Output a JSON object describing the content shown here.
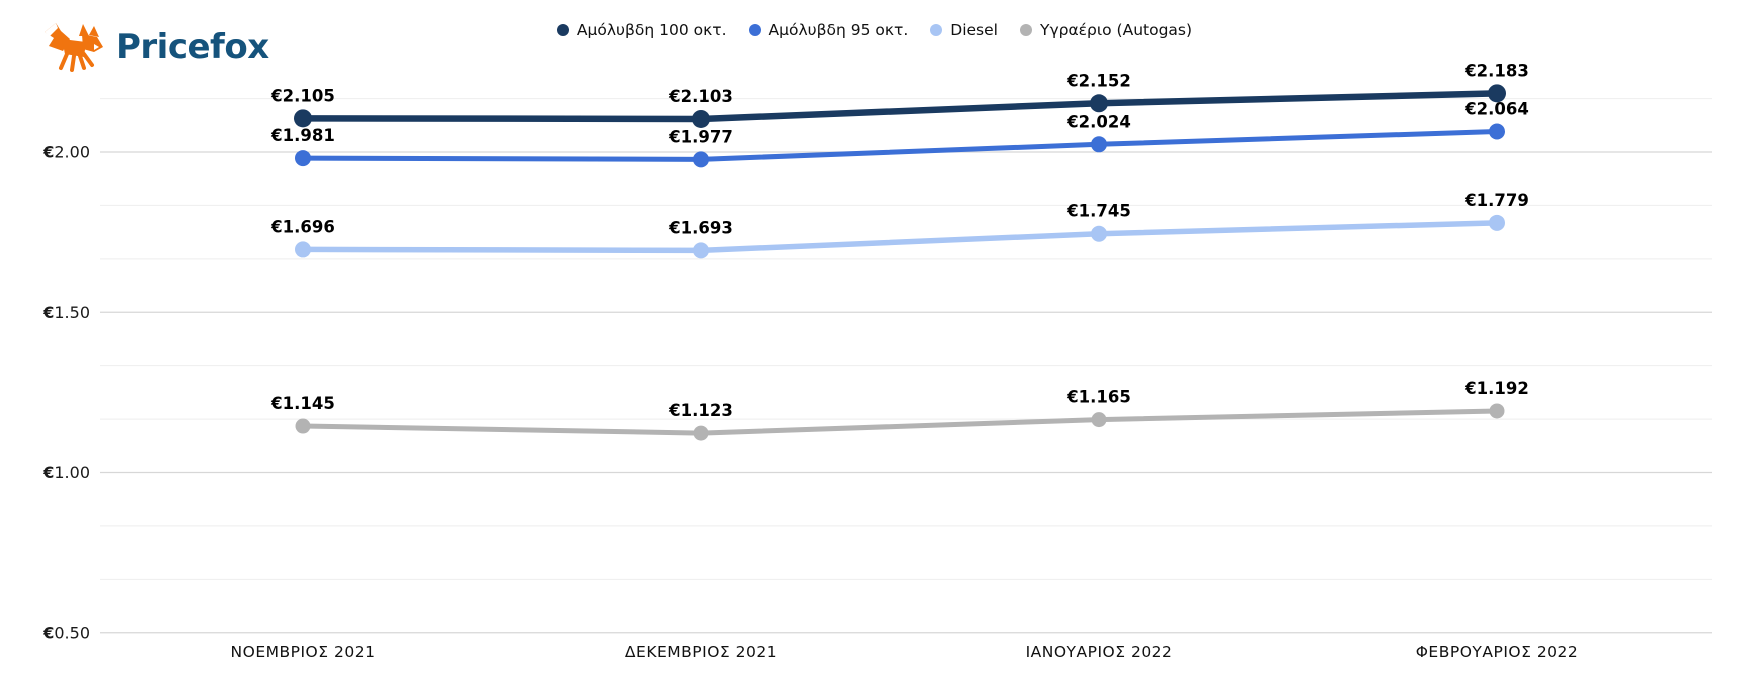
{
  "logo": {
    "brand": "Pricefox",
    "icon": "fox-icon",
    "text_color": "#15537c",
    "icon_color": "#f0740f"
  },
  "chart_data": {
    "type": "line",
    "title": "",
    "xlabel": "",
    "ylabel": "",
    "currency": "EUR",
    "categories": [
      "ΝΟΕΜΒΡΙΟΣ 2021",
      "ΔΕΚΕΜΒΡΙΟΣ 2021",
      "ΙΑΝΟΥΑΡΙΟΣ 2022",
      "ΦΕΒΡΟΥΑΡΙΟΣ 2022"
    ],
    "series": [
      {
        "name": "Αμόλυβδη 100 οκτ.",
        "color": "#1a3a60",
        "values": [
          2.105,
          2.103,
          2.152,
          2.183
        ],
        "labels": [
          "€2.105",
          "€2.103",
          "€2.152",
          "€2.183"
        ]
      },
      {
        "name": "Αμόλυβδη 95 οκτ.",
        "color": "#3c6fd6",
        "values": [
          1.981,
          1.977,
          2.024,
          2.064
        ],
        "labels": [
          "€1.981",
          "€1.977",
          "€2.024",
          "€2.064"
        ]
      },
      {
        "name": "Diesel",
        "color": "#a8c5f4",
        "values": [
          1.696,
          1.693,
          1.745,
          1.779
        ],
        "labels": [
          "€1.696",
          "€1.693",
          "€1.745",
          "€1.779"
        ]
      },
      {
        "name": "Υγραέριο (Autogas)",
        "color": "#b3b3b3",
        "values": [
          1.145,
          1.123,
          1.165,
          1.192
        ],
        "labels": [
          "€1.145",
          "€1.123",
          "€1.165",
          "€1.192"
        ]
      }
    ],
    "y_axis": {
      "min": 0.5,
      "max": 2.25,
      "major_ticks": [
        {
          "value": 2.0,
          "label": "€2.00"
        },
        {
          "value": 1.5,
          "label": "€1.50"
        },
        {
          "value": 1.0,
          "label": "€1.00"
        },
        {
          "value": 0.5,
          "label": "€0.50"
        }
      ],
      "minor_tick_values": [
        2.1667,
        1.8333,
        1.6667,
        1.3333,
        1.1667,
        0.8333,
        0.6667
      ]
    },
    "legend_position": "top",
    "grid": true
  }
}
